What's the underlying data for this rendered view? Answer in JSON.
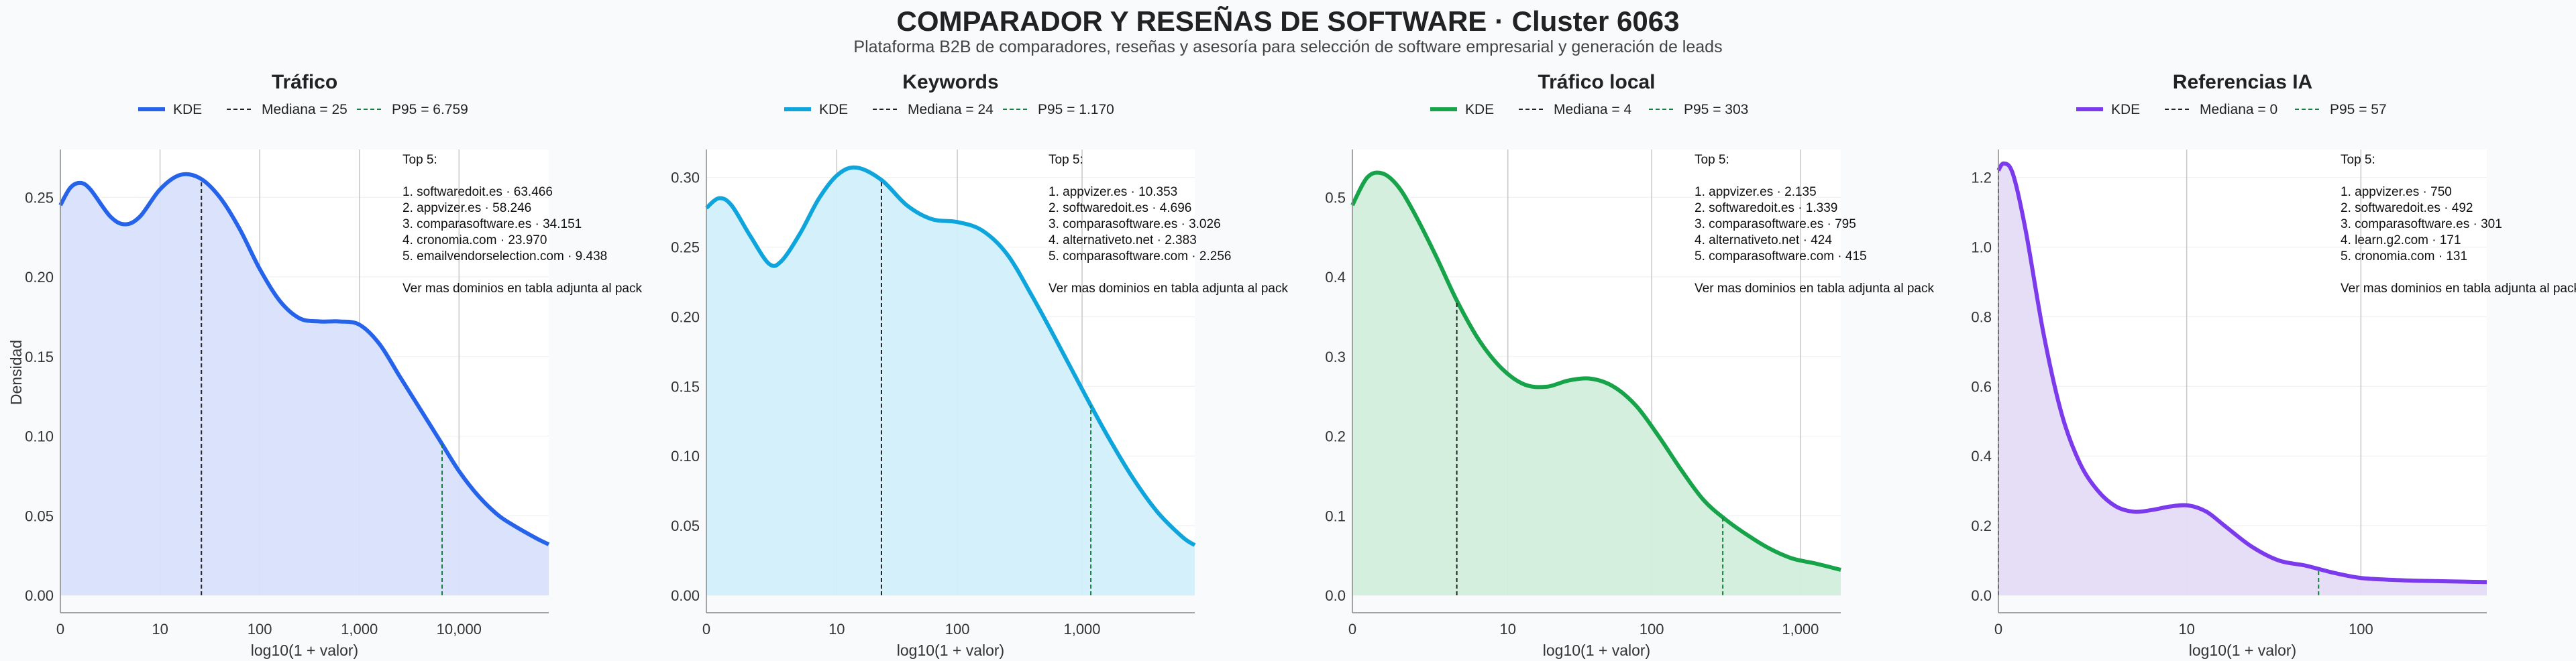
{
  "page": {
    "title": "COMPARADOR Y RESEÑAS DE SOFTWARE · Cluster 6063",
    "subtitle": "Plataforma B2B de comparadores, reseñas y asesoría para selección de software empresarial y generación de leads"
  },
  "chart_data": [
    {
      "type": "area",
      "title": "Tráfico",
      "color": "#2563eb",
      "fill": "#d8e2fb",
      "xlabel": "log10(1 + valor)",
      "ylabel": "Densidad",
      "xlim": [
        0,
        4.9
      ],
      "ylim": [
        0,
        0.28
      ],
      "xticks": [
        {
          "v": 0,
          "label": "0"
        },
        {
          "v": 1,
          "label": "10"
        },
        {
          "v": 2,
          "label": "100"
        },
        {
          "v": 3,
          "label": "1,000"
        },
        {
          "v": 4,
          "label": "10,000"
        }
      ],
      "yticks": [
        {
          "v": 0,
          "label": "0.00"
        },
        {
          "v": 0.05,
          "label": "0.05"
        },
        {
          "v": 0.1,
          "label": "0.10"
        },
        {
          "v": 0.15,
          "label": "0.15"
        },
        {
          "v": 0.2,
          "label": "0.20"
        },
        {
          "v": 0.25,
          "label": "0.25"
        }
      ],
      "x": [
        0,
        0.1,
        0.2,
        0.3,
        0.5,
        0.65,
        0.8,
        1.0,
        1.2,
        1.4,
        1.6,
        1.8,
        2.0,
        2.2,
        2.4,
        2.6,
        2.8,
        3.0,
        3.2,
        3.4,
        3.6,
        3.8,
        4.0,
        4.2,
        4.4,
        4.6,
        4.8,
        4.9
      ],
      "y": [
        0.245,
        0.256,
        0.259,
        0.255,
        0.238,
        0.233,
        0.238,
        0.255,
        0.264,
        0.262,
        0.25,
        0.23,
        0.205,
        0.185,
        0.174,
        0.172,
        0.172,
        0.17,
        0.158,
        0.138,
        0.118,
        0.098,
        0.078,
        0.062,
        0.05,
        0.042,
        0.035,
        0.032
      ],
      "median_value": 1.415,
      "p95_value": 3.83,
      "legend": {
        "kde": "KDE",
        "median": "Mediana = 25",
        "p95": "P95 = 6.759"
      },
      "annotation": {
        "heading": "Top 5:",
        "items": [
          "1. softwaredoit.es · 63.466",
          "2. appvizer.es · 58.246",
          "3. comparasoftware.es · 34.151",
          "4. cronomia.com · 23.970",
          "5. emailvendorselection.com · 9.438"
        ],
        "footer": "Ver mas dominios en tabla adjunta al pack"
      }
    },
    {
      "type": "area",
      "title": "Keywords",
      "color": "#0ea5dd",
      "fill": "#d2effb",
      "xlabel": "log10(1 + valor)",
      "ylabel": "",
      "xlim": [
        0,
        3.9
      ],
      "ylim": [
        0,
        0.32
      ],
      "xticks": [
        {
          "v": 0,
          "label": "0"
        },
        {
          "v": 1.041,
          "label": "10"
        },
        {
          "v": 2.004,
          "label": "100"
        },
        {
          "v": 3.0,
          "label": "1,000"
        }
      ],
      "yticks": [
        {
          "v": 0,
          "label": "0.00"
        },
        {
          "v": 0.05,
          "label": "0.05"
        },
        {
          "v": 0.1,
          "label": "0.10"
        },
        {
          "v": 0.15,
          "label": "0.15"
        },
        {
          "v": 0.2,
          "label": "0.20"
        },
        {
          "v": 0.25,
          "label": "0.25"
        },
        {
          "v": 0.3,
          "label": "0.30"
        }
      ],
      "x": [
        0,
        0.1,
        0.2,
        0.35,
        0.5,
        0.6,
        0.75,
        0.9,
        1.05,
        1.2,
        1.4,
        1.6,
        1.8,
        2.0,
        2.2,
        2.4,
        2.6,
        2.8,
        3.0,
        3.2,
        3.4,
        3.6,
        3.8,
        3.9
      ],
      "y": [
        0.278,
        0.285,
        0.28,
        0.258,
        0.238,
        0.24,
        0.26,
        0.285,
        0.302,
        0.307,
        0.298,
        0.28,
        0.27,
        0.268,
        0.262,
        0.245,
        0.215,
        0.182,
        0.148,
        0.115,
        0.085,
        0.06,
        0.042,
        0.036
      ],
      "median_value": 1.398,
      "p95_value": 3.07,
      "legend": {
        "kde": "KDE",
        "median": "Mediana = 24",
        "p95": "P95 = 1.170"
      },
      "annotation": {
        "heading": "Top 5:",
        "items": [
          "1. appvizer.es · 10.353",
          "2. softwaredoit.es · 4.696",
          "3. comparasoftware.es · 3.026",
          "4. alternativeto.net · 2.383",
          "5. comparasoftware.com · 2.256"
        ],
        "footer": "Ver mas dominios en tabla adjunta al pack"
      }
    },
    {
      "type": "area",
      "title": "Tráfico local",
      "color": "#16a34a",
      "fill": "#d3eedc",
      "xlabel": "log10(1 + valor)",
      "ylabel": "",
      "xlim": [
        0,
        3.27
      ],
      "ylim": [
        0,
        0.56
      ],
      "xticks": [
        {
          "v": 0,
          "label": "0"
        },
        {
          "v": 1.041,
          "label": "10"
        },
        {
          "v": 2.004,
          "label": "100"
        },
        {
          "v": 3.0,
          "label": "1,000"
        }
      ],
      "yticks": [
        {
          "v": 0,
          "label": "0.0"
        },
        {
          "v": 0.1,
          "label": "0.1"
        },
        {
          "v": 0.2,
          "label": "0.2"
        },
        {
          "v": 0.3,
          "label": "0.3"
        },
        {
          "v": 0.4,
          "label": "0.4"
        },
        {
          "v": 0.5,
          "label": "0.5"
        }
      ],
      "x": [
        0,
        0.1,
        0.2,
        0.3,
        0.4,
        0.55,
        0.7,
        0.85,
        1.0,
        1.15,
        1.3,
        1.45,
        1.6,
        1.75,
        1.9,
        2.05,
        2.2,
        2.35,
        2.5,
        2.65,
        2.8,
        2.95,
        3.1,
        3.27
      ],
      "y": [
        0.49,
        0.525,
        0.53,
        0.515,
        0.485,
        0.43,
        0.37,
        0.32,
        0.285,
        0.265,
        0.262,
        0.27,
        0.272,
        0.262,
        0.238,
        0.2,
        0.158,
        0.12,
        0.095,
        0.075,
        0.058,
        0.046,
        0.04,
        0.032
      ],
      "median_value": 0.699,
      "p95_value": 2.48,
      "legend": {
        "kde": "KDE",
        "median": "Mediana = 4",
        "p95": "P95 = 303"
      },
      "annotation": {
        "heading": "Top 5:",
        "items": [
          "1. appvizer.es · 2.135",
          "2. softwaredoit.es · 1.339",
          "3. comparasoftware.es · 795",
          "4. alternativeto.net · 424",
          "5. comparasoftware.com · 415"
        ],
        "footer": "Ver mas dominios en tabla adjunta al pack"
      }
    },
    {
      "type": "area",
      "title": "Referencias IA",
      "color": "#7c3aed",
      "fill": "#e5dbf7",
      "xlabel": "log10(1 + valor)",
      "ylabel": "",
      "xlim": [
        0,
        2.7
      ],
      "ylim": [
        0,
        1.28
      ],
      "xticks": [
        {
          "v": 0,
          "label": "0"
        },
        {
          "v": 1.041,
          "label": "10"
        },
        {
          "v": 2.004,
          "label": "100"
        }
      ],
      "yticks": [
        {
          "v": 0,
          "label": "0.0"
        },
        {
          "v": 0.2,
          "label": "0.2"
        },
        {
          "v": 0.4,
          "label": "0.4"
        },
        {
          "v": 0.6,
          "label": "0.6"
        },
        {
          "v": 0.8,
          "label": "0.8"
        },
        {
          "v": 1.0,
          "label": "1.0"
        },
        {
          "v": 1.2,
          "label": "1.2"
        }
      ],
      "x": [
        0,
        0.03,
        0.08,
        0.15,
        0.25,
        0.35,
        0.45,
        0.55,
        0.65,
        0.75,
        0.85,
        0.95,
        1.05,
        1.15,
        1.25,
        1.4,
        1.55,
        1.7,
        1.85,
        2.0,
        2.15,
        2.3,
        2.5,
        2.7
      ],
      "y": [
        1.22,
        1.24,
        1.21,
        1.05,
        0.75,
        0.52,
        0.38,
        0.3,
        0.255,
        0.24,
        0.245,
        0.255,
        0.258,
        0.24,
        0.2,
        0.14,
        0.1,
        0.085,
        0.065,
        0.05,
        0.045,
        0.042,
        0.04,
        0.038
      ],
      "median_value": 0,
      "p95_value": 1.77,
      "legend": {
        "kde": "KDE",
        "median": "Mediana = 0",
        "p95": "P95 = 57"
      },
      "annotation": {
        "heading": "Top 5:",
        "items": [
          "1. appvizer.es · 750",
          "2. softwaredoit.es · 492",
          "3. comparasoftware.es · 301",
          "4. learn.g2.com · 171",
          "5. cronomia.com · 131"
        ],
        "footer": "Ver mas dominios en tabla adjunta al pack"
      }
    }
  ]
}
